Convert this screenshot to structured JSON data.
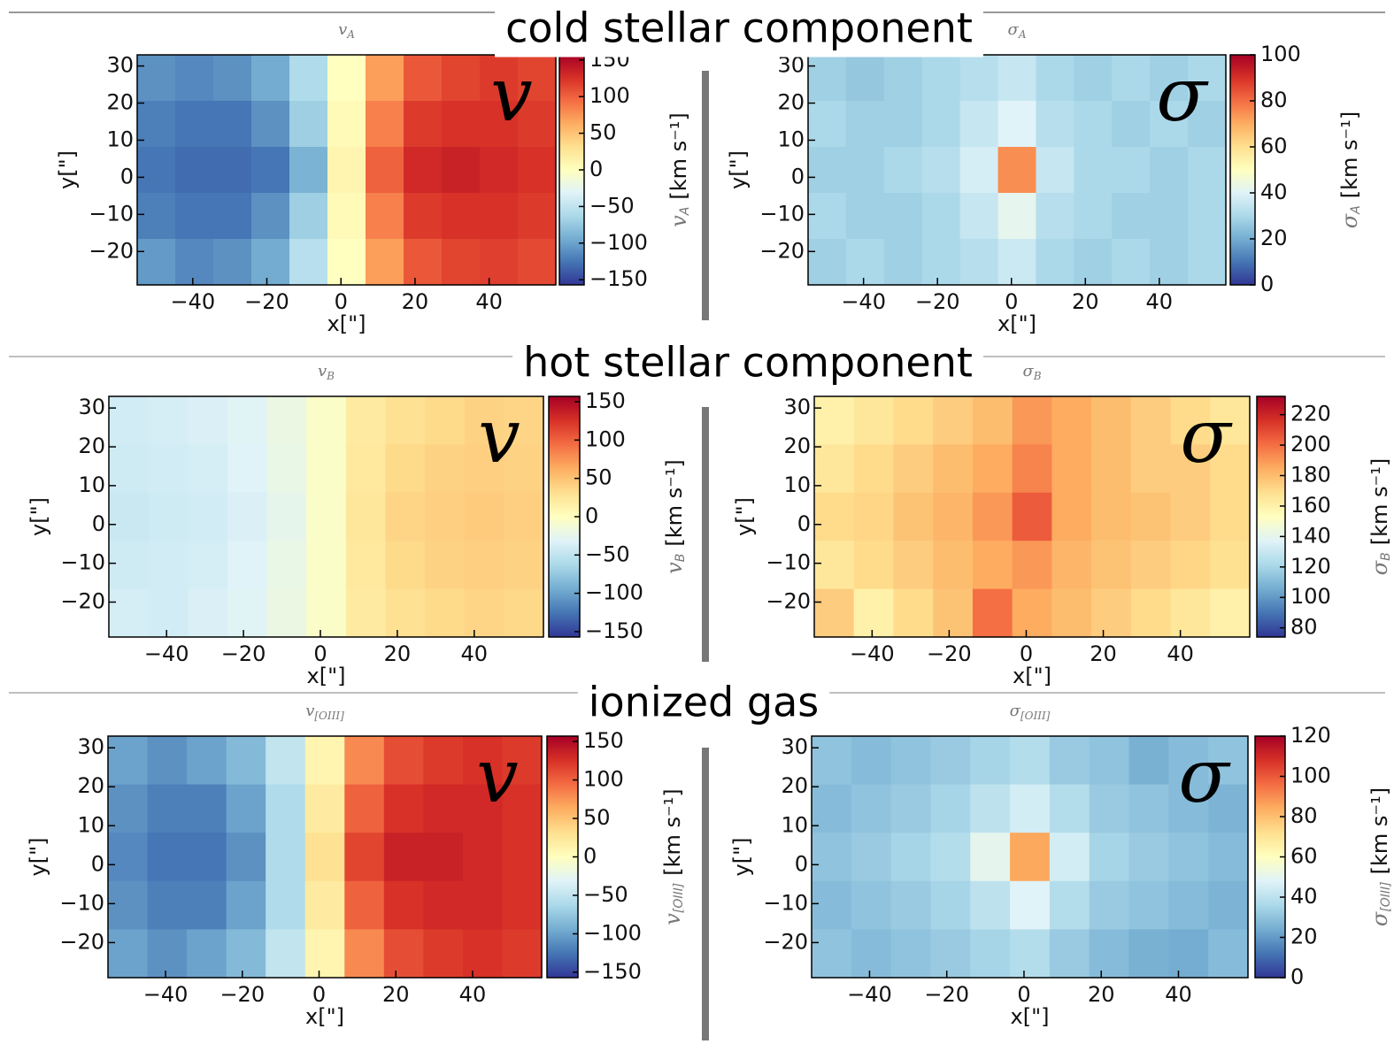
{
  "sections": [
    "cold stellar component",
    "hot stellar component",
    "ionized gas"
  ],
  "chart_data": [
    {
      "type": "heatmap",
      "title": "v",
      "title_sub": "A",
      "panel_symbol": "v",
      "xlabel": "x[\"]",
      "ylabel": "y[\"]",
      "clabel_unit": "[km s⁻¹]",
      "xlim": [
        -55,
        58
      ],
      "ylim": [
        -29,
        33
      ],
      "clim": [
        -157,
        157
      ],
      "xticks": [
        {
          "value": -40,
          "label": "−40"
        },
        {
          "value": -20,
          "label": "−20"
        },
        0,
        20,
        40
      ],
      "yticks": [
        {
          "value": -20,
          "label": "−20"
        },
        {
          "value": -10,
          "label": "−10"
        },
        0,
        10,
        20,
        30
      ],
      "cticks": [
        {
          "value": -150,
          "label": "−150"
        },
        {
          "value": -100,
          "label": "−100"
        },
        {
          "value": -50,
          "label": "−50"
        },
        0,
        50,
        100,
        150
      ],
      "colormap": [
        "#313695",
        "#4575b4",
        "#74add1",
        "#abd9e9",
        "#e0f3f8",
        "#ffffbf",
        "#fee090",
        "#fdae61",
        "#f46d43",
        "#d73027",
        "#a50026"
      ],
      "z": [
        [
          -110,
          -115,
          -110,
          -95,
          -60,
          0,
          70,
          105,
          115,
          120,
          115
        ],
        [
          -120,
          -125,
          -125,
          -110,
          -70,
          5,
          85,
          120,
          125,
          125,
          120
        ],
        [
          -125,
          -130,
          -130,
          -125,
          -90,
          10,
          100,
          130,
          135,
          130,
          125
        ],
        [
          -120,
          -125,
          -125,
          -110,
          -70,
          5,
          85,
          120,
          125,
          125,
          120
        ],
        [
          -105,
          -115,
          -110,
          -95,
          -55,
          0,
          70,
          105,
          115,
          118,
          112
        ]
      ]
    },
    {
      "type": "heatmap",
      "title": "σ",
      "title_sub": "A",
      "panel_symbol": "σ",
      "xlabel": "x[\"]",
      "ylabel": "y[\"]",
      "clabel_unit": "[km s⁻¹]",
      "xlim": [
        -55,
        58
      ],
      "ylim": [
        -29,
        33
      ],
      "clim": [
        0,
        100
      ],
      "xticks": [
        {
          "value": -40,
          "label": "−40"
        },
        {
          "value": -20,
          "label": "−20"
        },
        0,
        20,
        40
      ],
      "yticks": [
        {
          "value": -20,
          "label": "−20"
        },
        {
          "value": -10,
          "label": "−10"
        },
        0,
        10,
        20,
        30
      ],
      "cticks": [
        0,
        20,
        40,
        60,
        80,
        100
      ],
      "colormap": [
        "#313695",
        "#4575b4",
        "#74add1",
        "#abd9e9",
        "#e0f3f8",
        "#ffffbf",
        "#fee090",
        "#fdae61",
        "#f46d43",
        "#d73027",
        "#a50026"
      ],
      "z": [
        [
          28,
          26,
          28,
          30,
          32,
          35,
          30,
          28,
          30,
          28,
          30
        ],
        [
          30,
          28,
          28,
          30,
          35,
          40,
          32,
          30,
          28,
          30,
          28
        ],
        [
          28,
          28,
          30,
          32,
          38,
          75,
          35,
          30,
          30,
          28,
          30
        ],
        [
          30,
          28,
          28,
          30,
          35,
          42,
          32,
          30,
          28,
          28,
          30
        ],
        [
          28,
          30,
          28,
          30,
          32,
          36,
          30,
          28,
          30,
          28,
          30
        ]
      ]
    },
    {
      "type": "heatmap",
      "title": "v",
      "title_sub": "B",
      "panel_symbol": "v",
      "xlabel": "x[\"]",
      "ylabel": "y[\"]",
      "clabel_unit": "[km s⁻¹]",
      "xlim": [
        -55,
        58
      ],
      "ylim": [
        -29,
        33
      ],
      "clim": [
        -157,
        157
      ],
      "xticks": [
        {
          "value": -40,
          "label": "−40"
        },
        {
          "value": -20,
          "label": "−20"
        },
        0,
        20,
        40
      ],
      "yticks": [
        {
          "value": -20,
          "label": "−20"
        },
        {
          "value": -10,
          "label": "−10"
        },
        0,
        10,
        20,
        30
      ],
      "cticks": [
        {
          "value": -150,
          "label": "−150"
        },
        {
          "value": -100,
          "label": "−100"
        },
        {
          "value": -50,
          "label": "−50"
        },
        0,
        50,
        100,
        150
      ],
      "colormap": [
        "#313695",
        "#4575b4",
        "#74add1",
        "#abd9e9",
        "#e0f3f8",
        "#ffffbf",
        "#fee090",
        "#fdae61",
        "#f46d43",
        "#d73027",
        "#a50026"
      ],
      "z": [
        [
          -40,
          -38,
          -35,
          -30,
          -20,
          -5,
          20,
          30,
          35,
          40,
          38
        ],
        [
          -42,
          -40,
          -38,
          -32,
          -22,
          -5,
          22,
          35,
          40,
          42,
          40
        ],
        [
          -45,
          -42,
          -40,
          -35,
          -25,
          -5,
          25,
          38,
          42,
          45,
          42
        ],
        [
          -42,
          -40,
          -38,
          -32,
          -22,
          -5,
          22,
          35,
          40,
          42,
          40
        ],
        [
          -38,
          -40,
          -35,
          -30,
          -20,
          -5,
          20,
          30,
          35,
          38,
          36
        ]
      ]
    },
    {
      "type": "heatmap",
      "title": "σ",
      "title_sub": "B",
      "panel_symbol": "σ",
      "xlabel": "x[\"]",
      "ylabel": "y[\"]",
      "clabel_unit": "[km s⁻¹]",
      "xlim": [
        -55,
        58
      ],
      "ylim": [
        -29,
        33
      ],
      "clim": [
        74,
        232
      ],
      "xticks": [
        {
          "value": -40,
          "label": "−40"
        },
        {
          "value": -20,
          "label": "−20"
        },
        0,
        20,
        40
      ],
      "yticks": [
        {
          "value": -20,
          "label": "−20"
        },
        {
          "value": -10,
          "label": "−10"
        },
        0,
        10,
        20,
        30
      ],
      "cticks": [
        80,
        100,
        120,
        140,
        160,
        180,
        200,
        220
      ],
      "colormap": [
        "#313695",
        "#4575b4",
        "#74add1",
        "#abd9e9",
        "#e0f3f8",
        "#ffffbf",
        "#fee090",
        "#fdae61",
        "#f46d43",
        "#d73027",
        "#a50026"
      ],
      "z": [
        [
          160,
          165,
          170,
          175,
          180,
          190,
          185,
          180,
          175,
          170,
          165
        ],
        [
          165,
          170,
          175,
          180,
          185,
          195,
          185,
          180,
          175,
          175,
          170
        ],
        [
          170,
          172,
          178,
          182,
          190,
          205,
          185,
          180,
          178,
          175,
          170
        ],
        [
          165,
          170,
          175,
          180,
          185,
          190,
          182,
          178,
          175,
          172,
          168
        ],
        [
          175,
          160,
          170,
          178,
          200,
          185,
          180,
          175,
          170,
          165,
          160
        ]
      ]
    },
    {
      "type": "heatmap",
      "title": "v",
      "title_sub": "[OIII]",
      "panel_symbol": "v",
      "xlabel": "x[\"]",
      "ylabel": "y[\"]",
      "clabel_unit": "[km s⁻¹]",
      "xlim": [
        -55,
        58
      ],
      "ylim": [
        -29,
        33
      ],
      "clim": [
        -157,
        157
      ],
      "xticks": [
        {
          "value": -40,
          "label": "−40"
        },
        {
          "value": -20,
          "label": "−20"
        },
        0,
        20,
        40
      ],
      "yticks": [
        {
          "value": -20,
          "label": "−20"
        },
        {
          "value": -10,
          "label": "−10"
        },
        0,
        10,
        20,
        30
      ],
      "cticks": [
        {
          "value": -150,
          "label": "−150"
        },
        {
          "value": -100,
          "label": "−100"
        },
        {
          "value": -50,
          "label": "−50"
        },
        0,
        50,
        100,
        150
      ],
      "colormap": [
        "#313695",
        "#4575b4",
        "#74add1",
        "#abd9e9",
        "#e0f3f8",
        "#ffffbf",
        "#fee090",
        "#fdae61",
        "#f46d43",
        "#d73027",
        "#a50026"
      ],
      "z": [
        [
          -100,
          -110,
          -100,
          -85,
          -50,
          10,
          80,
          110,
          120,
          125,
          120
        ],
        [
          -110,
          -120,
          -120,
          -100,
          -60,
          20,
          100,
          125,
          130,
          130,
          125
        ],
        [
          -115,
          -125,
          -125,
          -110,
          -60,
          30,
          115,
          135,
          135,
          130,
          125
        ],
        [
          -110,
          -120,
          -120,
          -100,
          -60,
          20,
          100,
          125,
          130,
          130,
          125
        ],
        [
          -100,
          -110,
          -100,
          -85,
          -50,
          10,
          80,
          110,
          120,
          125,
          120
        ]
      ]
    },
    {
      "type": "heatmap",
      "title": "σ",
      "title_sub": "[OIII]",
      "panel_symbol": "σ",
      "xlabel": "x[\"]",
      "ylabel": "y[\"]",
      "clabel_unit": "[km s⁻¹]",
      "xlim": [
        -55,
        58
      ],
      "ylim": [
        -29,
        33
      ],
      "clim": [
        0,
        120
      ],
      "xticks": [
        {
          "value": -40,
          "label": "−40"
        },
        {
          "value": -20,
          "label": "−20"
        },
        0,
        20,
        40
      ],
      "yticks": [
        {
          "value": -20,
          "label": "−20"
        },
        {
          "value": -10,
          "label": "−10"
        },
        0,
        10,
        20,
        30
      ],
      "cticks": [
        0,
        20,
        40,
        60,
        80,
        100,
        120
      ],
      "colormap": [
        "#313695",
        "#4575b4",
        "#74add1",
        "#abd9e9",
        "#e0f3f8",
        "#ffffbf",
        "#fee090",
        "#fdae61",
        "#f46d43",
        "#d73027",
        "#a50026"
      ],
      "z": [
        [
          30,
          28,
          30,
          32,
          35,
          38,
          32,
          30,
          25,
          28,
          30
        ],
        [
          28,
          30,
          32,
          35,
          40,
          45,
          38,
          32,
          30,
          28,
          26
        ],
        [
          30,
          32,
          35,
          38,
          50,
          85,
          45,
          35,
          32,
          30,
          28
        ],
        [
          28,
          30,
          32,
          35,
          40,
          48,
          38,
          32,
          30,
          28,
          26
        ],
        [
          30,
          28,
          30,
          32,
          35,
          38,
          32,
          28,
          25,
          24,
          28
        ]
      ]
    }
  ]
}
